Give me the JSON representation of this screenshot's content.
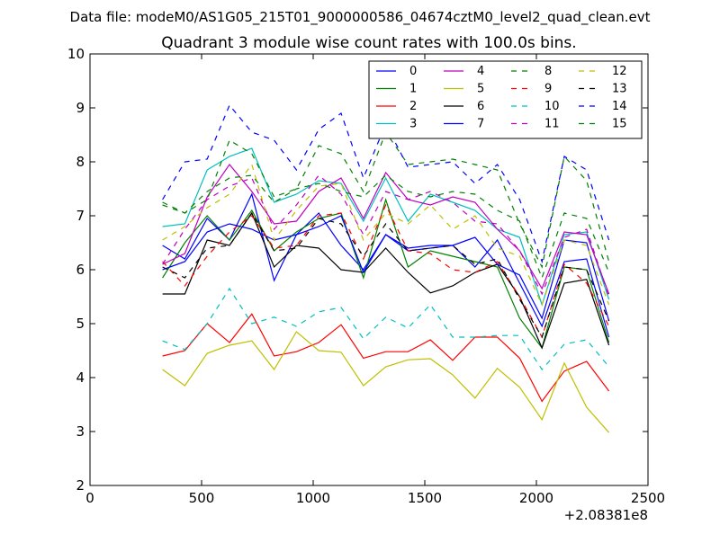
{
  "figure": {
    "suptitle": "Data file: modeM0/AS1G05_215T01_9000000586_04674cztM0_level2_quad_clean.evt"
  },
  "chart_data": {
    "type": "line",
    "title": "Quadrant 3 module wise count rates with 100.0s bins.",
    "xlabel": "",
    "ylabel": "",
    "x_offset_label": "+2.08381e8",
    "xlim": [
      0,
      2500
    ],
    "ylim": [
      2,
      10
    ],
    "xticks": [
      0,
      500,
      1000,
      1500,
      2000,
      2500
    ],
    "yticks": [
      2,
      3,
      4,
      5,
      6,
      7,
      8,
      9,
      10
    ],
    "grid": false,
    "legend_position": "top-right",
    "legend_columns": 4,
    "x": [
      325,
      425,
      525,
      625,
      725,
      825,
      925,
      1025,
      1125,
      1225,
      1325,
      1425,
      1525,
      1625,
      1725,
      1825,
      1925,
      2025,
      2125,
      2225,
      2325
    ],
    "series": [
      {
        "name": "0",
        "color": "#0000ff",
        "dash": "solid",
        "values": [
          6.45,
          6.2,
          6.95,
          6.55,
          7.4,
          5.8,
          6.65,
          7.05,
          6.45,
          6.0,
          6.65,
          6.35,
          6.4,
          6.45,
          6.05,
          6.55,
          5.75,
          4.95,
          6.15,
          6.2,
          4.75
        ]
      },
      {
        "name": "1",
        "color": "#008000",
        "dash": "solid",
        "values": [
          5.85,
          6.5,
          7.0,
          6.55,
          7.1,
          6.35,
          6.7,
          6.95,
          7.05,
          5.85,
          7.3,
          6.05,
          6.35,
          6.25,
          6.15,
          6.05,
          5.1,
          4.55,
          6.05,
          6.0,
          4.65
        ]
      },
      {
        "name": "2",
        "color": "#ff0000",
        "dash": "solid",
        "values": [
          4.4,
          4.5,
          5.0,
          4.65,
          5.18,
          4.4,
          4.48,
          4.65,
          4.98,
          4.36,
          4.48,
          4.48,
          4.7,
          4.32,
          4.75,
          4.75,
          4.36,
          3.56,
          4.12,
          4.3,
          3.75
        ]
      },
      {
        "name": "3",
        "color": "#00bfbf",
        "dash": "solid",
        "values": [
          6.8,
          6.85,
          7.85,
          8.1,
          8.25,
          7.25,
          7.4,
          7.65,
          7.6,
          6.9,
          7.7,
          6.9,
          7.4,
          7.25,
          7.1,
          6.75,
          6.6,
          5.35,
          6.65,
          6.7,
          5.45
        ]
      },
      {
        "name": "4",
        "color": "#bf00bf",
        "dash": "solid",
        "values": [
          6.1,
          6.3,
          7.35,
          7.95,
          7.45,
          6.85,
          6.9,
          7.45,
          7.7,
          6.95,
          7.8,
          7.3,
          7.2,
          7.35,
          7.25,
          6.75,
          6.35,
          5.65,
          6.7,
          6.65,
          5.55
        ]
      },
      {
        "name": "5",
        "color": "#bfbf00",
        "dash": "solid",
        "values": [
          4.15,
          3.85,
          4.45,
          4.6,
          4.68,
          4.15,
          4.85,
          4.5,
          4.47,
          3.85,
          4.2,
          4.33,
          4.35,
          4.05,
          3.62,
          4.17,
          3.82,
          3.22,
          4.27,
          3.45,
          2.98
        ]
      },
      {
        "name": "6",
        "color": "#000000",
        "dash": "solid",
        "values": [
          5.55,
          5.55,
          6.55,
          6.45,
          7.05,
          6.05,
          6.45,
          6.4,
          6.0,
          5.95,
          6.4,
          5.95,
          5.57,
          5.7,
          5.95,
          6.1,
          5.5,
          4.55,
          5.75,
          5.82,
          4.6
        ]
      },
      {
        "name": "7",
        "color": "#0000ff",
        "dash": "solid",
        "values": [
          6.0,
          6.15,
          6.7,
          6.85,
          6.75,
          6.55,
          6.65,
          6.8,
          7.0,
          5.95,
          6.65,
          6.4,
          6.45,
          6.45,
          6.6,
          6.1,
          5.9,
          5.1,
          6.55,
          6.5,
          5.05
        ]
      },
      {
        "name": "8",
        "color": "#008000",
        "dash": "dashed",
        "values": [
          7.25,
          7.05,
          7.3,
          8.4,
          8.15,
          7.35,
          7.5,
          8.3,
          8.15,
          7.45,
          8.55,
          7.95,
          8.0,
          8.05,
          7.95,
          7.85,
          6.85,
          6.05,
          8.1,
          7.65,
          6.15
        ]
      },
      {
        "name": "9",
        "color": "#ff0000",
        "dash": "dashed",
        "values": [
          6.15,
          5.7,
          6.25,
          6.7,
          7.0,
          6.4,
          6.45,
          7.0,
          7.05,
          6.2,
          7.2,
          6.35,
          6.3,
          6.0,
          5.95,
          6.15,
          5.5,
          4.75,
          6.1,
          5.75,
          4.95
        ]
      },
      {
        "name": "10",
        "color": "#00bfbf",
        "dash": "dashed",
        "values": [
          4.68,
          4.52,
          5.0,
          5.65,
          5.0,
          5.12,
          4.95,
          5.22,
          5.3,
          4.72,
          5.12,
          4.92,
          5.35,
          4.75,
          4.75,
          4.78,
          4.78,
          4.15,
          4.62,
          4.7,
          4.2
        ]
      },
      {
        "name": "11",
        "color": "#bf00bf",
        "dash": "dashed",
        "values": [
          6.1,
          6.75,
          7.3,
          7.55,
          7.7,
          6.75,
          7.2,
          7.75,
          7.4,
          6.65,
          7.45,
          7.3,
          7.45,
          7.25,
          6.9,
          6.85,
          6.35,
          5.55,
          6.6,
          6.75,
          5.5
        ]
      },
      {
        "name": "12",
        "color": "#bfbf00",
        "dash": "dashed",
        "values": [
          6.55,
          6.8,
          7.15,
          7.4,
          7.95,
          6.55,
          7.1,
          7.55,
          7.6,
          6.55,
          7.05,
          6.85,
          7.2,
          6.75,
          7.0,
          6.4,
          6.25,
          5.35,
          6.55,
          6.45,
          5.35
        ]
      },
      {
        "name": "13",
        "color": "#000000",
        "dash": "dashed",
        "values": [
          6.05,
          5.85,
          6.4,
          6.45,
          7.05,
          6.35,
          6.4,
          6.95,
          6.85,
          6.25,
          6.85,
          6.35,
          6.4,
          6.45,
          6.1,
          6.2,
          5.45,
          4.75,
          6.05,
          6.0,
          5.05
        ]
      },
      {
        "name": "14",
        "color": "#0000ff",
        "dash": "dashed",
        "values": [
          7.3,
          8.0,
          8.05,
          9.05,
          8.55,
          8.4,
          7.85,
          8.6,
          8.9,
          7.7,
          8.7,
          7.9,
          7.95,
          8.0,
          7.6,
          7.95,
          7.3,
          6.15,
          8.1,
          7.85,
          6.55
        ]
      },
      {
        "name": "15",
        "color": "#008000",
        "dash": "dashed",
        "values": [
          7.2,
          7.05,
          7.45,
          7.7,
          7.75,
          7.25,
          7.5,
          7.6,
          7.45,
          7.35,
          7.75,
          7.45,
          7.35,
          7.45,
          7.4,
          7.1,
          6.9,
          5.85,
          7.05,
          6.95,
          5.95
        ]
      }
    ]
  }
}
